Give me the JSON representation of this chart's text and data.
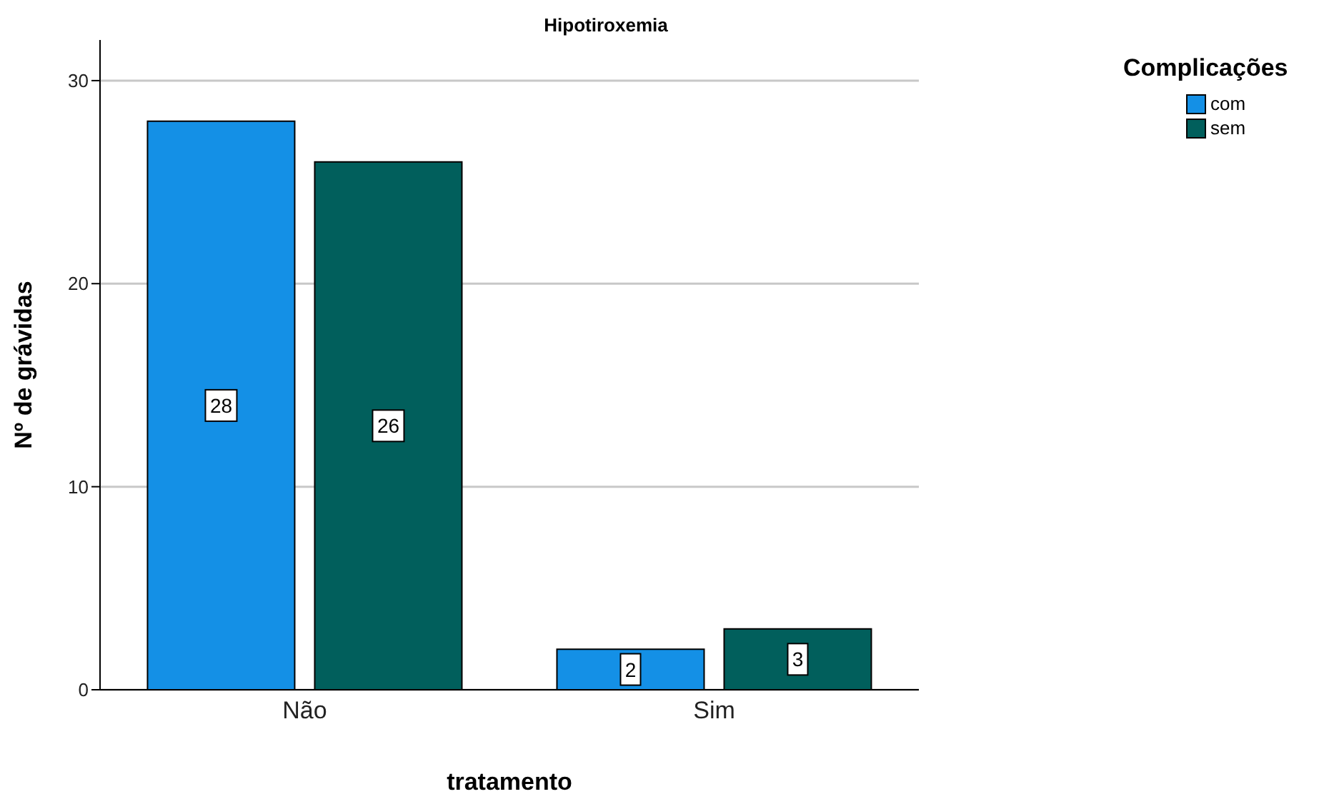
{
  "chart_data": {
    "type": "bar",
    "title": "Hipotiroxemia",
    "xlabel": "tratamento",
    "ylabel": "Nº de grávidas",
    "legend_title": "Complicações",
    "categories": [
      "Não",
      "Sim"
    ],
    "series": [
      {
        "name": "com",
        "color": "#1490e6",
        "values": [
          28,
          2
        ]
      },
      {
        "name": "sem",
        "color": "#015f5c",
        "values": [
          26,
          3
        ]
      }
    ],
    "ylim": [
      0,
      32
    ],
    "yticks": [
      0,
      10,
      20,
      30
    ],
    "grid": "y",
    "legend": "top right",
    "data_labels": true
  }
}
